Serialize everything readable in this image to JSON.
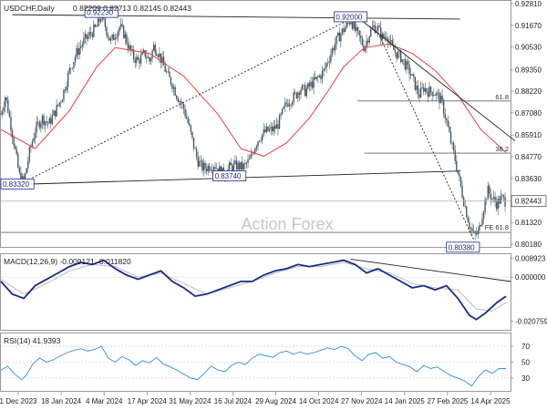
{
  "header": {
    "symbol": "USDCHF,Daily",
    "ohlc": "0.82209 0.82713 0.82145 0.82443"
  },
  "watermark": "Action Forex",
  "colors": {
    "candle": "#4a5a66",
    "ma": "#e8403a",
    "macd": "#1c2a8a",
    "signal": "#b7bcc4",
    "rsi": "#2e8fe0",
    "trendline": "#222222",
    "hline": "#666666"
  },
  "chart_data": {
    "type": "candlestick",
    "price_axis": {
      "ticks": [
        "0.92810",
        "0.91670",
        "0.90530",
        "0.89350",
        "0.88220",
        "0.87080",
        "0.85910",
        "0.84770",
        "0.83630",
        "0.82443",
        "0.81320",
        "0.80180"
      ],
      "ylim": [
        0.8018,
        0.9281
      ],
      "current_price": 0.82443
    },
    "x_axis": {
      "ticks": [
        "1 Dec 2023",
        "18 Jan 2024",
        "4 Mar 2024",
        "17 Apr 2024",
        "31 May 2024",
        "16 Jul 2024",
        "29 Aug 2024",
        "14 Oct 2024",
        "27 Nov 2024",
        "14 Jan 2025",
        "27 Feb 2025",
        "14 Apr 2025"
      ]
    },
    "price_path": [
      [
        0,
        0.87
      ],
      [
        4,
        0.88
      ],
      [
        10,
        0.86
      ],
      [
        16,
        0.838
      ],
      [
        20,
        0.834
      ],
      [
        25,
        0.85
      ],
      [
        30,
        0.862
      ],
      [
        36,
        0.868
      ],
      [
        42,
        0.865
      ],
      [
        48,
        0.872
      ],
      [
        54,
        0.88
      ],
      [
        60,
        0.893
      ],
      [
        66,
        0.902
      ],
      [
        72,
        0.908
      ],
      [
        78,
        0.912
      ],
      [
        84,
        0.916
      ],
      [
        88,
        0.922
      ],
      [
        92,
        0.915
      ],
      [
        96,
        0.908
      ],
      [
        100,
        0.912
      ],
      [
        104,
        0.916
      ],
      [
        108,
        0.912
      ],
      [
        112,
        0.905
      ],
      [
        116,
        0.9
      ],
      [
        120,
        0.898
      ],
      [
        126,
        0.902
      ],
      [
        130,
        0.898
      ],
      [
        134,
        0.906
      ],
      [
        138,
        0.902
      ],
      [
        142,
        0.896
      ],
      [
        146,
        0.89
      ],
      [
        150,
        0.886
      ],
      [
        154,
        0.88
      ],
      [
        160,
        0.873
      ],
      [
        164,
        0.865
      ],
      [
        168,
        0.855
      ],
      [
        172,
        0.846
      ],
      [
        176,
        0.842
      ],
      [
        180,
        0.842
      ],
      [
        186,
        0.844
      ],
      [
        192,
        0.84
      ],
      [
        196,
        0.838
      ],
      [
        200,
        0.842
      ],
      [
        206,
        0.843
      ],
      [
        212,
        0.842
      ],
      [
        218,
        0.846
      ],
      [
        222,
        0.853
      ],
      [
        226,
        0.858
      ],
      [
        232,
        0.861
      ],
      [
        238,
        0.862
      ],
      [
        242,
        0.864
      ],
      [
        246,
        0.87
      ],
      [
        250,
        0.876
      ],
      [
        254,
        0.878
      ],
      [
        258,
        0.88
      ],
      [
        262,
        0.884
      ],
      [
        266,
        0.882
      ],
      [
        272,
        0.886
      ],
      [
        276,
        0.888
      ],
      [
        282,
        0.892
      ],
      [
        286,
        0.898
      ],
      [
        290,
        0.904
      ],
      [
        294,
        0.909
      ],
      [
        298,
        0.913
      ],
      [
        302,
        0.916
      ],
      [
        306,
        0.92
      ],
      [
        310,
        0.914
      ],
      [
        314,
        0.91
      ],
      [
        318,
        0.905
      ],
      [
        322,
        0.912
      ],
      [
        326,
        0.916
      ],
      [
        330,
        0.915
      ],
      [
        334,
        0.91
      ],
      [
        338,
        0.912
      ],
      [
        342,
        0.905
      ],
      [
        346,
        0.902
      ],
      [
        350,
        0.9
      ],
      [
        354,
        0.896
      ],
      [
        358,
        0.892
      ],
      [
        362,
        0.886
      ],
      [
        366,
        0.88
      ],
      [
        370,
        0.884
      ],
      [
        374,
        0.882
      ],
      [
        378,
        0.882
      ],
      [
        382,
        0.88
      ],
      [
        386,
        0.876
      ],
      [
        390,
        0.866
      ],
      [
        394,
        0.855
      ],
      [
        398,
        0.845
      ],
      [
        402,
        0.833
      ],
      [
        406,
        0.822
      ],
      [
        410,
        0.812
      ],
      [
        414,
        0.806
      ],
      [
        418,
        0.808
      ],
      [
        422,
        0.82
      ],
      [
        426,
        0.83
      ],
      [
        430,
        0.826
      ],
      [
        434,
        0.823
      ],
      [
        438,
        0.826
      ],
      [
        442,
        0.824
      ]
    ],
    "moving_average_path": [
      [
        0,
        0.862
      ],
      [
        30,
        0.852
      ],
      [
        60,
        0.872
      ],
      [
        84,
        0.895
      ],
      [
        100,
        0.905
      ],
      [
        130,
        0.902
      ],
      [
        160,
        0.89
      ],
      [
        190,
        0.87
      ],
      [
        210,
        0.852
      ],
      [
        230,
        0.848
      ],
      [
        250,
        0.855
      ],
      [
        270,
        0.868
      ],
      [
        286,
        0.882
      ],
      [
        300,
        0.895
      ],
      [
        318,
        0.905
      ],
      [
        340,
        0.907
      ],
      [
        360,
        0.902
      ],
      [
        380,
        0.893
      ],
      [
        400,
        0.88
      ],
      [
        420,
        0.862
      ],
      [
        442,
        0.85
      ]
    ],
    "annotations": [
      {
        "label": "0.92230",
        "x": 88,
        "price": 0.9223
      },
      {
        "label": "0.92000",
        "x": 306,
        "price": 0.92
      },
      {
        "label": "0.83740",
        "x": 200,
        "price": 0.8374
      },
      {
        "label": "0.83320",
        "x": 16,
        "price": 0.8332
      },
      {
        "label": "0.80380",
        "x": 414,
        "price": 0.8038
      },
      {
        "label": "61.8",
        "x": 434,
        "price": 0.877
      },
      {
        "label": "38.2",
        "x": 434,
        "price": 0.8496
      },
      {
        "label": "FE 61.8",
        "x": 426,
        "price": 0.808
      }
    ],
    "trendlines": [
      {
        "name": "upper-channel",
        "from": [
          10,
          0.9223
        ],
        "to": [
          402,
          0.92
        ]
      },
      {
        "name": "lower-channel",
        "from": [
          16,
          0.8332
        ],
        "to": [
          402,
          0.8402
        ]
      },
      {
        "name": "rising-support",
        "from": [
          16,
          0.8332
        ],
        "to": [
          306,
          0.92
        ]
      },
      {
        "name": "fe-projection",
        "from": [
          330,
          0.913
        ],
        "to": [
          414,
          0.8038
        ]
      },
      {
        "name": "falling-resistance",
        "from": [
          312,
          0.921
        ],
        "to": [
          450,
          0.856
        ]
      }
    ],
    "hlines": [
      {
        "name": "fib-61.8",
        "price": 0.877,
        "from": 312,
        "to": 446
      },
      {
        "name": "fib-38.2",
        "price": 0.8496,
        "from": 318,
        "to": 446
      },
      {
        "name": "current",
        "price": 0.82443,
        "from": 0,
        "to": 446
      },
      {
        "name": "fe-61.8",
        "price": 0.808,
        "from": 0,
        "to": 446
      }
    ],
    "macd": {
      "label": "MACD(12,26,9) -0.009121 -0.011820",
      "ticks": [
        "0.008923",
        "0.000000",
        "-0.020759"
      ],
      "ylim": [
        -0.024,
        0.01
      ],
      "macd_path": [
        [
          0,
          -0.002
        ],
        [
          10,
          -0.008
        ],
        [
          20,
          -0.01
        ],
        [
          30,
          -0.004
        ],
        [
          40,
          -0.001
        ],
        [
          50,
          0.002
        ],
        [
          60,
          0.005
        ],
        [
          70,
          0.007
        ],
        [
          80,
          0.006
        ],
        [
          90,
          0.008
        ],
        [
          100,
          0.004
        ],
        [
          110,
          0.001
        ],
        [
          120,
          -0.001
        ],
        [
          130,
          0.001
        ],
        [
          140,
          0.003
        ],
        [
          150,
          -0.002
        ],
        [
          160,
          -0.005
        ],
        [
          170,
          -0.009
        ],
        [
          180,
          -0.008
        ],
        [
          190,
          -0.006
        ],
        [
          200,
          -0.004
        ],
        [
          210,
          -0.002
        ],
        [
          220,
          -0.002
        ],
        [
          230,
          0.001
        ],
        [
          240,
          0.003
        ],
        [
          250,
          0.004
        ],
        [
          260,
          0.006
        ],
        [
          270,
          0.005
        ],
        [
          280,
          0.006
        ],
        [
          290,
          0.007
        ],
        [
          300,
          0.008
        ],
        [
          310,
          0.006
        ],
        [
          320,
          0.002
        ],
        [
          330,
          0.004
        ],
        [
          340,
          0.001
        ],
        [
          350,
          -0.002
        ],
        [
          360,
          -0.005
        ],
        [
          370,
          -0.004
        ],
        [
          380,
          -0.006
        ],
        [
          390,
          -0.004
        ],
        [
          400,
          -0.01
        ],
        [
          410,
          -0.018
        ],
        [
          416,
          -0.02
        ],
        [
          424,
          -0.017
        ],
        [
          434,
          -0.012
        ],
        [
          442,
          -0.009
        ]
      ],
      "signal_path": [
        [
          0,
          -0.001
        ],
        [
          20,
          -0.008
        ],
        [
          40,
          -0.003
        ],
        [
          60,
          0.003
        ],
        [
          80,
          0.006
        ],
        [
          100,
          0.005
        ],
        [
          120,
          0.0
        ],
        [
          140,
          0.002
        ],
        [
          160,
          -0.003
        ],
        [
          180,
          -0.008
        ],
        [
          200,
          -0.005
        ],
        [
          220,
          -0.002
        ],
        [
          240,
          0.002
        ],
        [
          260,
          0.005
        ],
        [
          280,
          0.005
        ],
        [
          300,
          0.007
        ],
        [
          320,
          0.004
        ],
        [
          340,
          0.002
        ],
        [
          360,
          -0.003
        ],
        [
          380,
          -0.005
        ],
        [
          400,
          -0.006
        ],
        [
          416,
          -0.015
        ],
        [
          430,
          -0.016
        ],
        [
          442,
          -0.012
        ]
      ],
      "trendline": {
        "from": [
          306,
          0.0085
        ],
        "to": [
          446,
          -0.002
        ]
      }
    },
    "rsi": {
      "label": "RSI(14) 41.9393",
      "ticks": [
        "70",
        "50",
        "30"
      ],
      "ylim": [
        15,
        85
      ],
      "path": [
        [
          0,
          40
        ],
        [
          6,
          45
        ],
        [
          12,
          35
        ],
        [
          18,
          28
        ],
        [
          22,
          33
        ],
        [
          28,
          48
        ],
        [
          34,
          55
        ],
        [
          40,
          50
        ],
        [
          46,
          53
        ],
        [
          52,
          58
        ],
        [
          58,
          62
        ],
        [
          64,
          65
        ],
        [
          70,
          67
        ],
        [
          76,
          64
        ],
        [
          82,
          66
        ],
        [
          88,
          70
        ],
        [
          94,
          55
        ],
        [
          100,
          50
        ],
        [
          106,
          57
        ],
        [
          112,
          53
        ],
        [
          118,
          46
        ],
        [
          124,
          52
        ],
        [
          130,
          49
        ],
        [
          136,
          56
        ],
        [
          142,
          48
        ],
        [
          148,
          44
        ],
        [
          154,
          40
        ],
        [
          160,
          35
        ],
        [
          166,
          30
        ],
        [
          172,
          28
        ],
        [
          178,
          36
        ],
        [
          184,
          45
        ],
        [
          190,
          40
        ],
        [
          196,
          38
        ],
        [
          202,
          46
        ],
        [
          208,
          50
        ],
        [
          214,
          47
        ],
        [
          220,
          55
        ],
        [
          226,
          60
        ],
        [
          232,
          58
        ],
        [
          238,
          56
        ],
        [
          244,
          62
        ],
        [
          250,
          64
        ],
        [
          256,
          60
        ],
        [
          262,
          63
        ],
        [
          268,
          60
        ],
        [
          274,
          62
        ],
        [
          280,
          65
        ],
        [
          286,
          68
        ],
        [
          292,
          66
        ],
        [
          298,
          70
        ],
        [
          304,
          67
        ],
        [
          310,
          58
        ],
        [
          316,
          52
        ],
        [
          322,
          60
        ],
        [
          328,
          62
        ],
        [
          334,
          55
        ],
        [
          340,
          57
        ],
        [
          346,
          50
        ],
        [
          352,
          47
        ],
        [
          358,
          44
        ],
        [
          364,
          38
        ],
        [
          370,
          46
        ],
        [
          376,
          42
        ],
        [
          382,
          44
        ],
        [
          388,
          38
        ],
        [
          394,
          33
        ],
        [
          400,
          30
        ],
        [
          406,
          26
        ],
        [
          412,
          20
        ],
        [
          418,
          32
        ],
        [
          424,
          40
        ],
        [
          430,
          36
        ],
        [
          436,
          42
        ],
        [
          442,
          42
        ]
      ]
    }
  }
}
